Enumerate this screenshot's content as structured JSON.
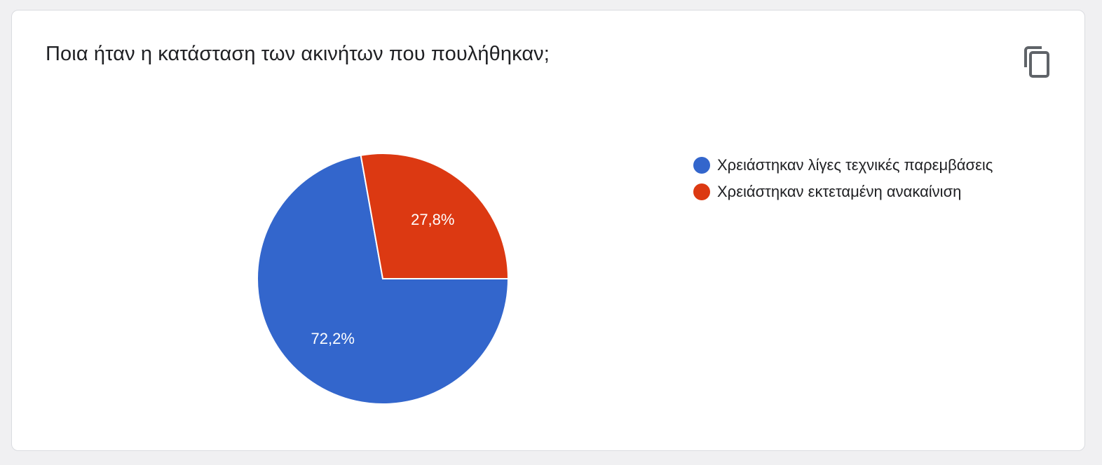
{
  "card": {
    "title": "Ποια ήταν η κατάσταση των ακινήτων που πουλήθηκαν;"
  },
  "toolbar": {
    "copy_icon": "copy-icon"
  },
  "chart_data": {
    "type": "pie",
    "categories": [
      "Χρειάστηκαν λίγες τεχνικές παρεμβάσεις",
      "Χρειάστηκαν εκτεταμένη ανακαίνιση"
    ],
    "values": [
      72.2,
      27.8
    ],
    "slice_labels": [
      "72,2%",
      "27,8%"
    ],
    "colors": [
      "#3366cc",
      "#dc3912"
    ],
    "legend_position": "right",
    "start_angle": "top, clockwise from second slice"
  }
}
